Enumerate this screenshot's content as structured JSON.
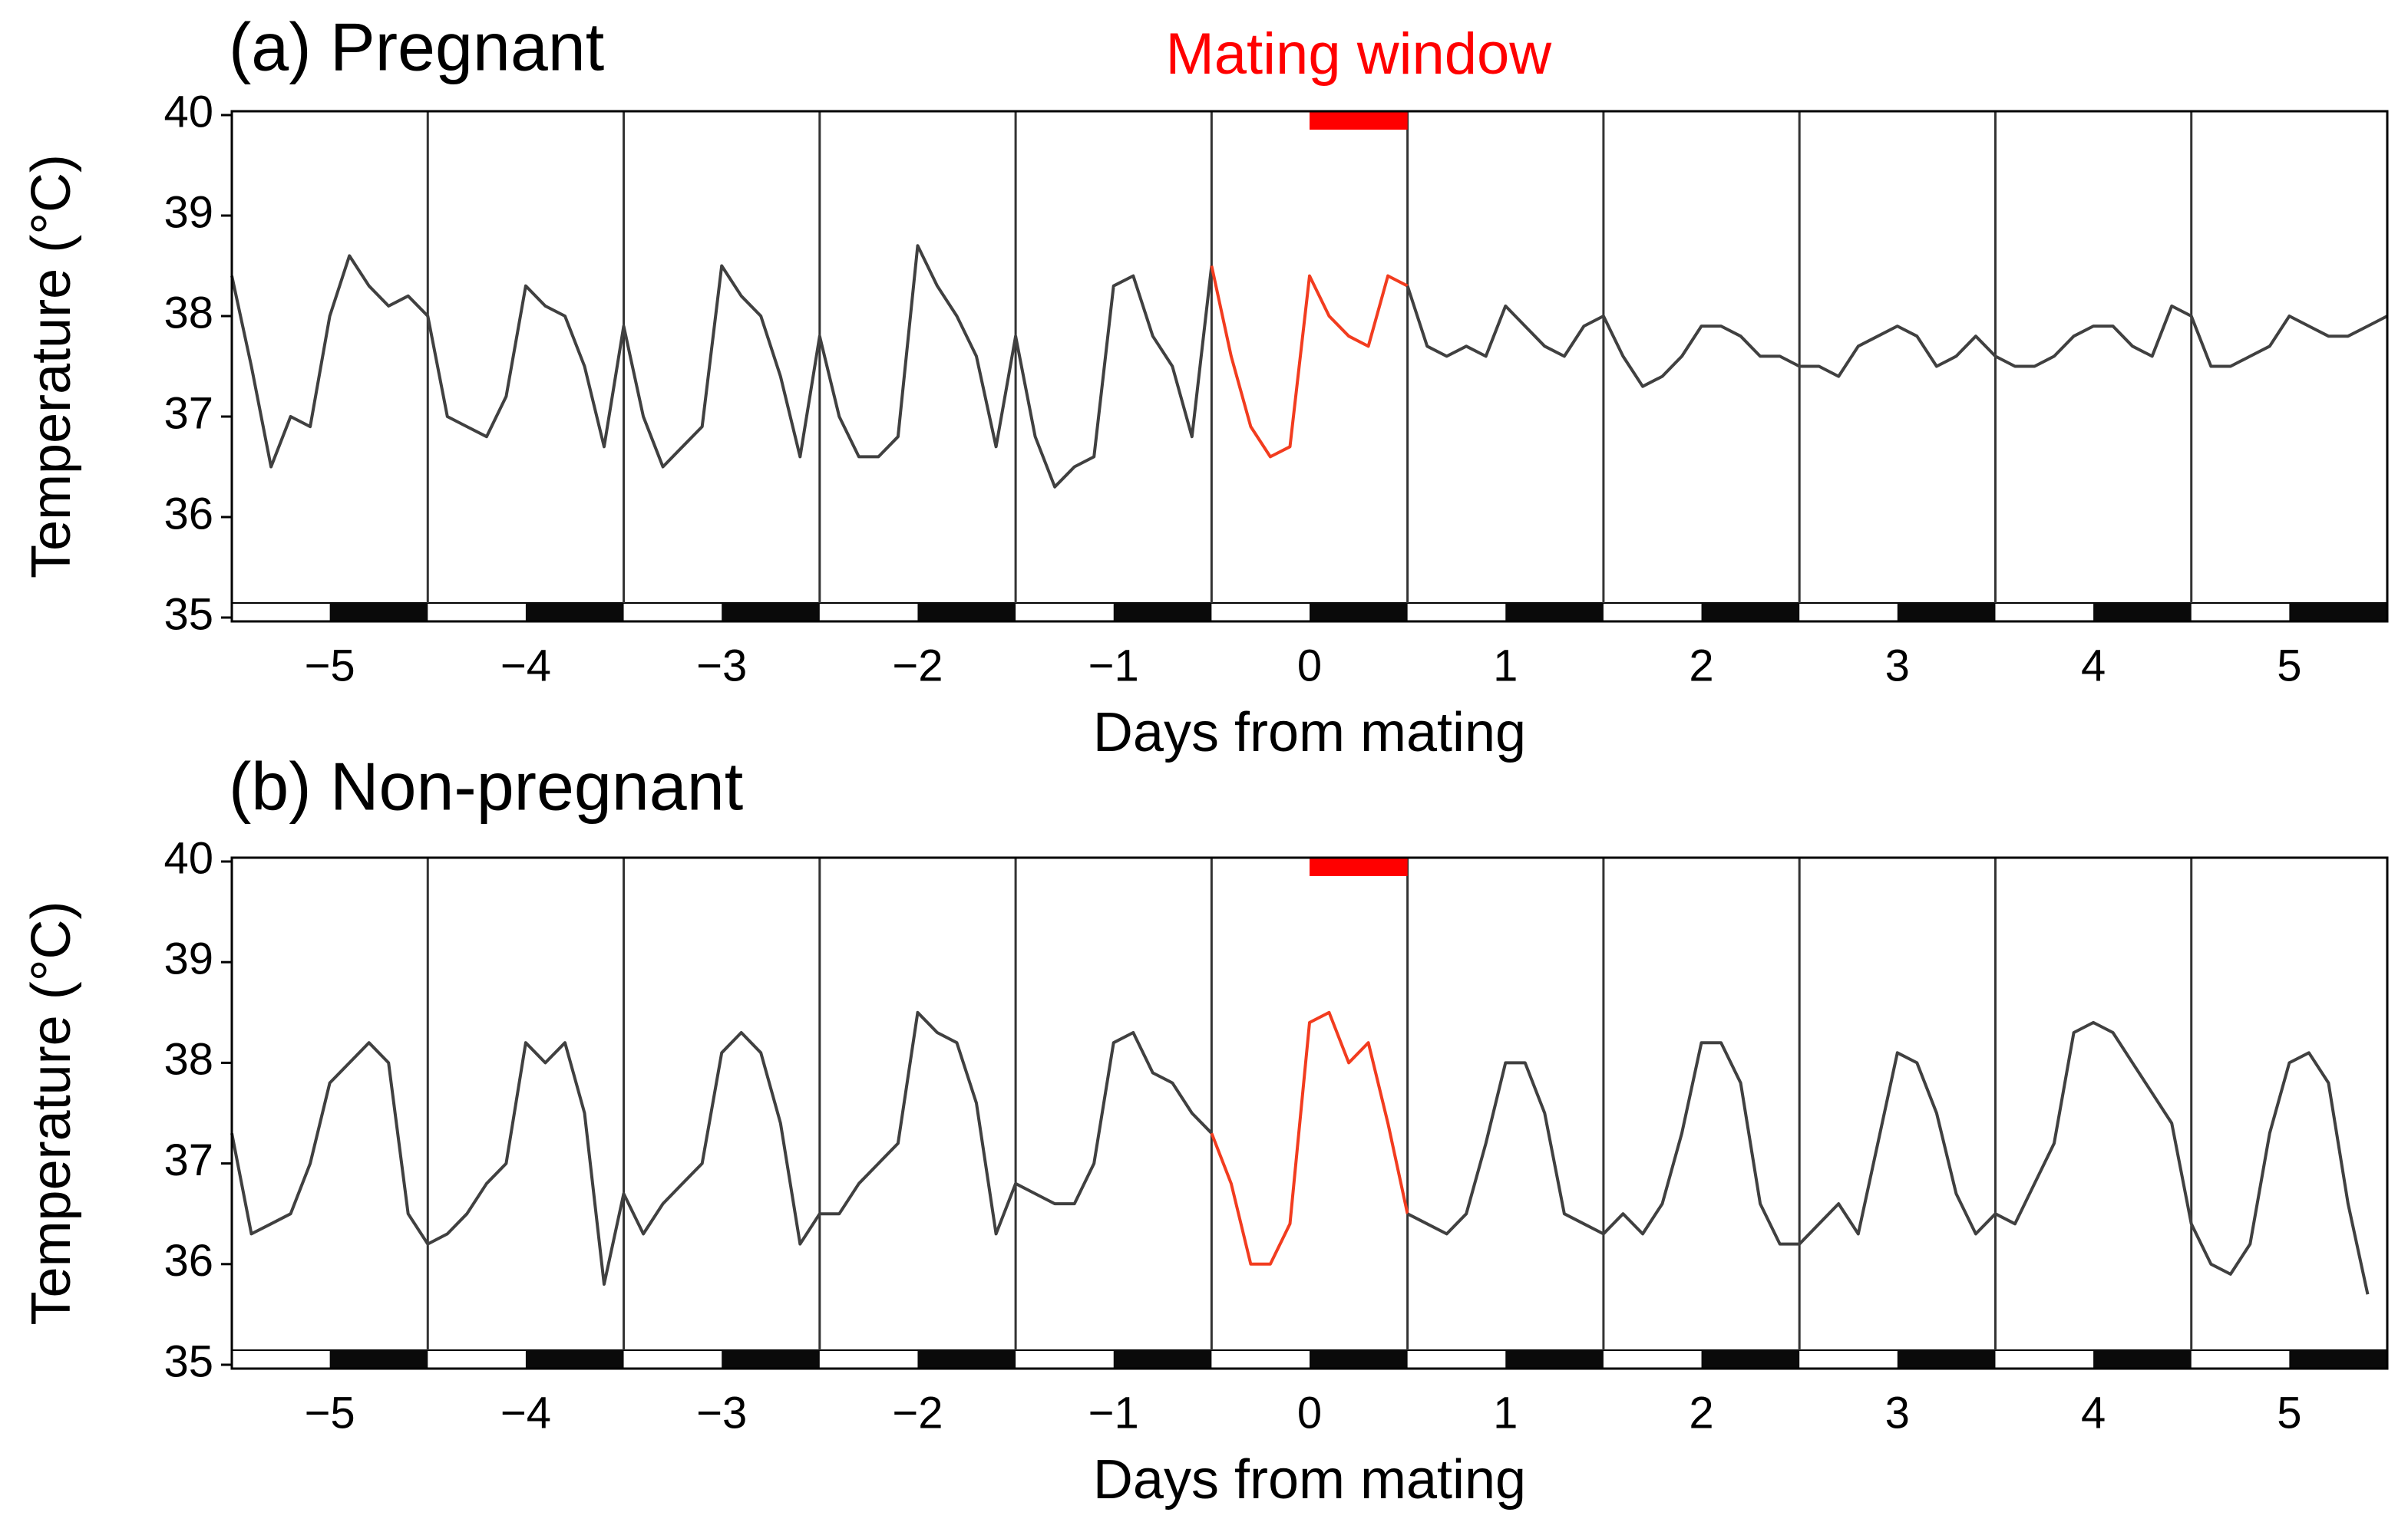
{
  "chart_data": [
    {
      "type": "line",
      "title": "(a) Pregnant",
      "xlabel": "Days from mating",
      "ylabel": "Temperature (°C)",
      "xlim": [
        -5.5,
        5.5
      ],
      "ylim": [
        35,
        40
      ],
      "xticks": [
        {
          "value": -5,
          "label": "−5"
        },
        {
          "value": -4,
          "label": "−4"
        },
        {
          "value": -3,
          "label": "−3"
        },
        {
          "value": -2,
          "label": "−2"
        },
        {
          "value": -1,
          "label": "−1"
        },
        0,
        1,
        2,
        3,
        4,
        5
      ],
      "yticks": [
        35,
        36,
        37,
        38,
        39,
        40
      ],
      "day_boundaries": [
        -4.5,
        -3.5,
        -2.5,
        -1.5,
        -0.5,
        0.5,
        1.5,
        2.5,
        3.5,
        4.5
      ],
      "dark_periods": [
        [
          -5,
          -4.5
        ],
        [
          -4,
          -3.5
        ],
        [
          -3,
          -2.5
        ],
        [
          -2,
          -1.5
        ],
        [
          -1,
          -0.5
        ],
        [
          0,
          0.5
        ],
        [
          1,
          1.5
        ],
        [
          2,
          2.5
        ],
        [
          3,
          3.5
        ],
        [
          4,
          4.5
        ],
        [
          5,
          5.5
        ]
      ],
      "mating_window": {
        "label": "Mating window",
        "range": [
          0,
          0.5
        ],
        "color": "#ff0000"
      },
      "series": [
        {
          "color": "#404040",
          "x": [
            -5.5,
            -5.4,
            -5.3,
            -5.2,
            -5.1,
            -5.0,
            -4.9,
            -4.8,
            -4.7,
            -4.6,
            -4.5,
            -4.4,
            -4.3,
            -4.2,
            -4.1,
            -4.0,
            -3.9,
            -3.8,
            -3.7,
            -3.6,
            -3.5,
            -3.4,
            -3.3,
            -3.2,
            -3.1,
            -3.0,
            -2.9,
            -2.8,
            -2.7,
            -2.6,
            -2.5,
            -2.4,
            -2.3,
            -2.2,
            -2.1,
            -2.0,
            -1.9,
            -1.8,
            -1.7,
            -1.6,
            -1.5,
            -1.4,
            -1.3,
            -1.2,
            -1.1,
            -1.0,
            -0.9,
            -0.8,
            -0.7,
            -0.6,
            -0.5
          ],
          "values": [
            38.4,
            37.5,
            36.5,
            37.0,
            36.9,
            38.0,
            38.6,
            38.3,
            38.1,
            38.2,
            38.0,
            37.0,
            36.9,
            36.8,
            37.2,
            38.3,
            38.1,
            38.0,
            37.5,
            36.7,
            37.9,
            37.0,
            36.5,
            36.7,
            36.9,
            38.5,
            38.2,
            38.0,
            37.4,
            36.6,
            37.8,
            37.0,
            36.6,
            36.6,
            36.8,
            38.7,
            38.3,
            38.0,
            37.6,
            36.7,
            37.8,
            36.8,
            36.3,
            36.5,
            36.6,
            38.3,
            38.4,
            37.8,
            37.5,
            36.8,
            38.5
          ]
        },
        {
          "color": "#f23c1f",
          "x": [
            -0.5,
            -0.4,
            -0.3,
            -0.2,
            -0.1,
            0.0,
            0.1,
            0.2,
            0.3,
            0.4,
            0.5
          ],
          "values": [
            38.5,
            37.6,
            36.9,
            36.6,
            36.7,
            38.4,
            38.0,
            37.8,
            37.7,
            38.4,
            38.3
          ]
        },
        {
          "color": "#404040",
          "x": [
            0.5,
            0.6,
            0.7,
            0.8,
            0.9,
            1.0,
            1.1,
            1.2,
            1.3,
            1.4,
            1.5,
            1.6,
            1.7,
            1.8,
            1.9,
            2.0,
            2.1,
            2.2,
            2.3,
            2.4,
            2.5,
            2.6,
            2.7,
            2.8,
            2.9,
            3.0,
            3.1,
            3.2,
            3.3,
            3.4,
            3.5,
            3.6,
            3.7,
            3.8,
            3.9,
            4.0,
            4.1,
            4.2,
            4.3,
            4.4,
            4.5,
            4.6,
            4.7,
            4.8,
            4.9,
            5.0,
            5.1,
            5.2,
            5.3,
            5.4,
            5.5
          ],
          "values": [
            38.3,
            37.7,
            37.6,
            37.7,
            37.6,
            38.1,
            37.9,
            37.7,
            37.6,
            37.9,
            38.0,
            37.6,
            37.3,
            37.4,
            37.6,
            37.9,
            37.9,
            37.8,
            37.6,
            37.6,
            37.5,
            37.5,
            37.4,
            37.7,
            37.8,
            37.9,
            37.8,
            37.5,
            37.6,
            37.8,
            37.6,
            37.5,
            37.5,
            37.6,
            37.8,
            37.9,
            37.9,
            37.7,
            37.6,
            38.1,
            38.0,
            37.5,
            37.5,
            37.6,
            37.7,
            38.0,
            37.9,
            37.8,
            37.8,
            37.9,
            38.0
          ]
        }
      ]
    },
    {
      "type": "line",
      "title": "(b) Non-pregnant",
      "xlabel": "Days from mating",
      "ylabel": "Temperature (°C)",
      "xlim": [
        -5.5,
        5.5
      ],
      "ylim": [
        35,
        40
      ],
      "xticks": [
        {
          "value": -5,
          "label": "−5"
        },
        {
          "value": -4,
          "label": "−4"
        },
        {
          "value": -3,
          "label": "−3"
        },
        {
          "value": -2,
          "label": "−2"
        },
        {
          "value": -1,
          "label": "−1"
        },
        0,
        1,
        2,
        3,
        4,
        5
      ],
      "yticks": [
        35,
        36,
        37,
        38,
        39,
        40
      ],
      "day_boundaries": [
        -4.5,
        -3.5,
        -2.5,
        -1.5,
        -0.5,
        0.5,
        1.5,
        2.5,
        3.5,
        4.5
      ],
      "dark_periods": [
        [
          -5,
          -4.5
        ],
        [
          -4,
          -3.5
        ],
        [
          -3,
          -2.5
        ],
        [
          -2,
          -1.5
        ],
        [
          -1,
          -0.5
        ],
        [
          0,
          0.5
        ],
        [
          1,
          1.5
        ],
        [
          2,
          2.5
        ],
        [
          3,
          3.5
        ],
        [
          4,
          4.5
        ],
        [
          5,
          5.5
        ]
      ],
      "mating_window": {
        "range": [
          0,
          0.5
        ],
        "color": "#ff0000"
      },
      "series": [
        {
          "color": "#404040",
          "x": [
            -5.5,
            -5.4,
            -5.3,
            -5.2,
            -5.1,
            -5.0,
            -4.9,
            -4.8,
            -4.7,
            -4.6,
            -4.5,
            -4.4,
            -4.3,
            -4.2,
            -4.1,
            -4.0,
            -3.9,
            -3.8,
            -3.7,
            -3.6,
            -3.5,
            -3.4,
            -3.3,
            -3.2,
            -3.1,
            -3.0,
            -2.9,
            -2.8,
            -2.7,
            -2.6,
            -2.5,
            -2.4,
            -2.3,
            -2.2,
            -2.1,
            -2.0,
            -1.9,
            -1.8,
            -1.7,
            -1.6,
            -1.5,
            -1.4,
            -1.3,
            -1.2,
            -1.1,
            -1.0,
            -0.9,
            -0.8,
            -0.7,
            -0.6,
            -0.5
          ],
          "values": [
            37.3,
            36.3,
            36.4,
            36.5,
            37.0,
            37.8,
            38.0,
            38.2,
            38.0,
            36.5,
            36.2,
            36.3,
            36.5,
            36.8,
            37.0,
            38.2,
            38.0,
            38.2,
            37.5,
            35.8,
            36.7,
            36.3,
            36.6,
            36.8,
            37.0,
            38.1,
            38.3,
            38.1,
            37.4,
            36.2,
            36.5,
            36.5,
            36.8,
            37.0,
            37.2,
            38.5,
            38.3,
            38.2,
            37.6,
            36.3,
            36.8,
            36.7,
            36.6,
            36.6,
            37.0,
            38.2,
            38.3,
            37.9,
            37.8,
            37.5,
            37.3
          ]
        },
        {
          "color": "#f23c1f",
          "x": [
            -0.5,
            -0.4,
            -0.3,
            -0.2,
            -0.1,
            0.0,
            0.1,
            0.2,
            0.3,
            0.4,
            0.5
          ],
          "values": [
            37.3,
            36.8,
            36.0,
            36.0,
            36.4,
            38.4,
            38.5,
            38.0,
            38.2,
            37.4,
            36.5
          ]
        },
        {
          "color": "#404040",
          "x": [
            0.5,
            0.6,
            0.7,
            0.8,
            0.9,
            1.0,
            1.1,
            1.2,
            1.3,
            1.4,
            1.5,
            1.6,
            1.7,
            1.8,
            1.9,
            2.0,
            2.1,
            2.2,
            2.3,
            2.4,
            2.5,
            2.6,
            2.7,
            2.8,
            2.9,
            3.0,
            3.1,
            3.2,
            3.3,
            3.4,
            3.5,
            3.6,
            3.7,
            3.8,
            3.9,
            4.0,
            4.1,
            4.2,
            4.3,
            4.4,
            4.5,
            4.6,
            4.7,
            4.8,
            4.9,
            5.0,
            5.1,
            5.2,
            5.3,
            5.4
          ],
          "values": [
            36.5,
            36.4,
            36.3,
            36.5,
            37.2,
            38.0,
            38.0,
            37.5,
            36.5,
            36.4,
            36.3,
            36.5,
            36.3,
            36.6,
            37.3,
            38.2,
            38.2,
            37.8,
            36.6,
            36.2,
            36.2,
            36.4,
            36.6,
            36.3,
            37.2,
            38.1,
            38.0,
            37.5,
            36.7,
            36.3,
            36.5,
            36.4,
            36.8,
            37.2,
            38.3,
            38.4,
            38.3,
            38.0,
            37.7,
            37.4,
            36.4,
            36.0,
            35.9,
            36.2,
            37.3,
            38.0,
            38.1,
            37.8,
            36.6,
            35.7
          ]
        }
      ]
    }
  ]
}
